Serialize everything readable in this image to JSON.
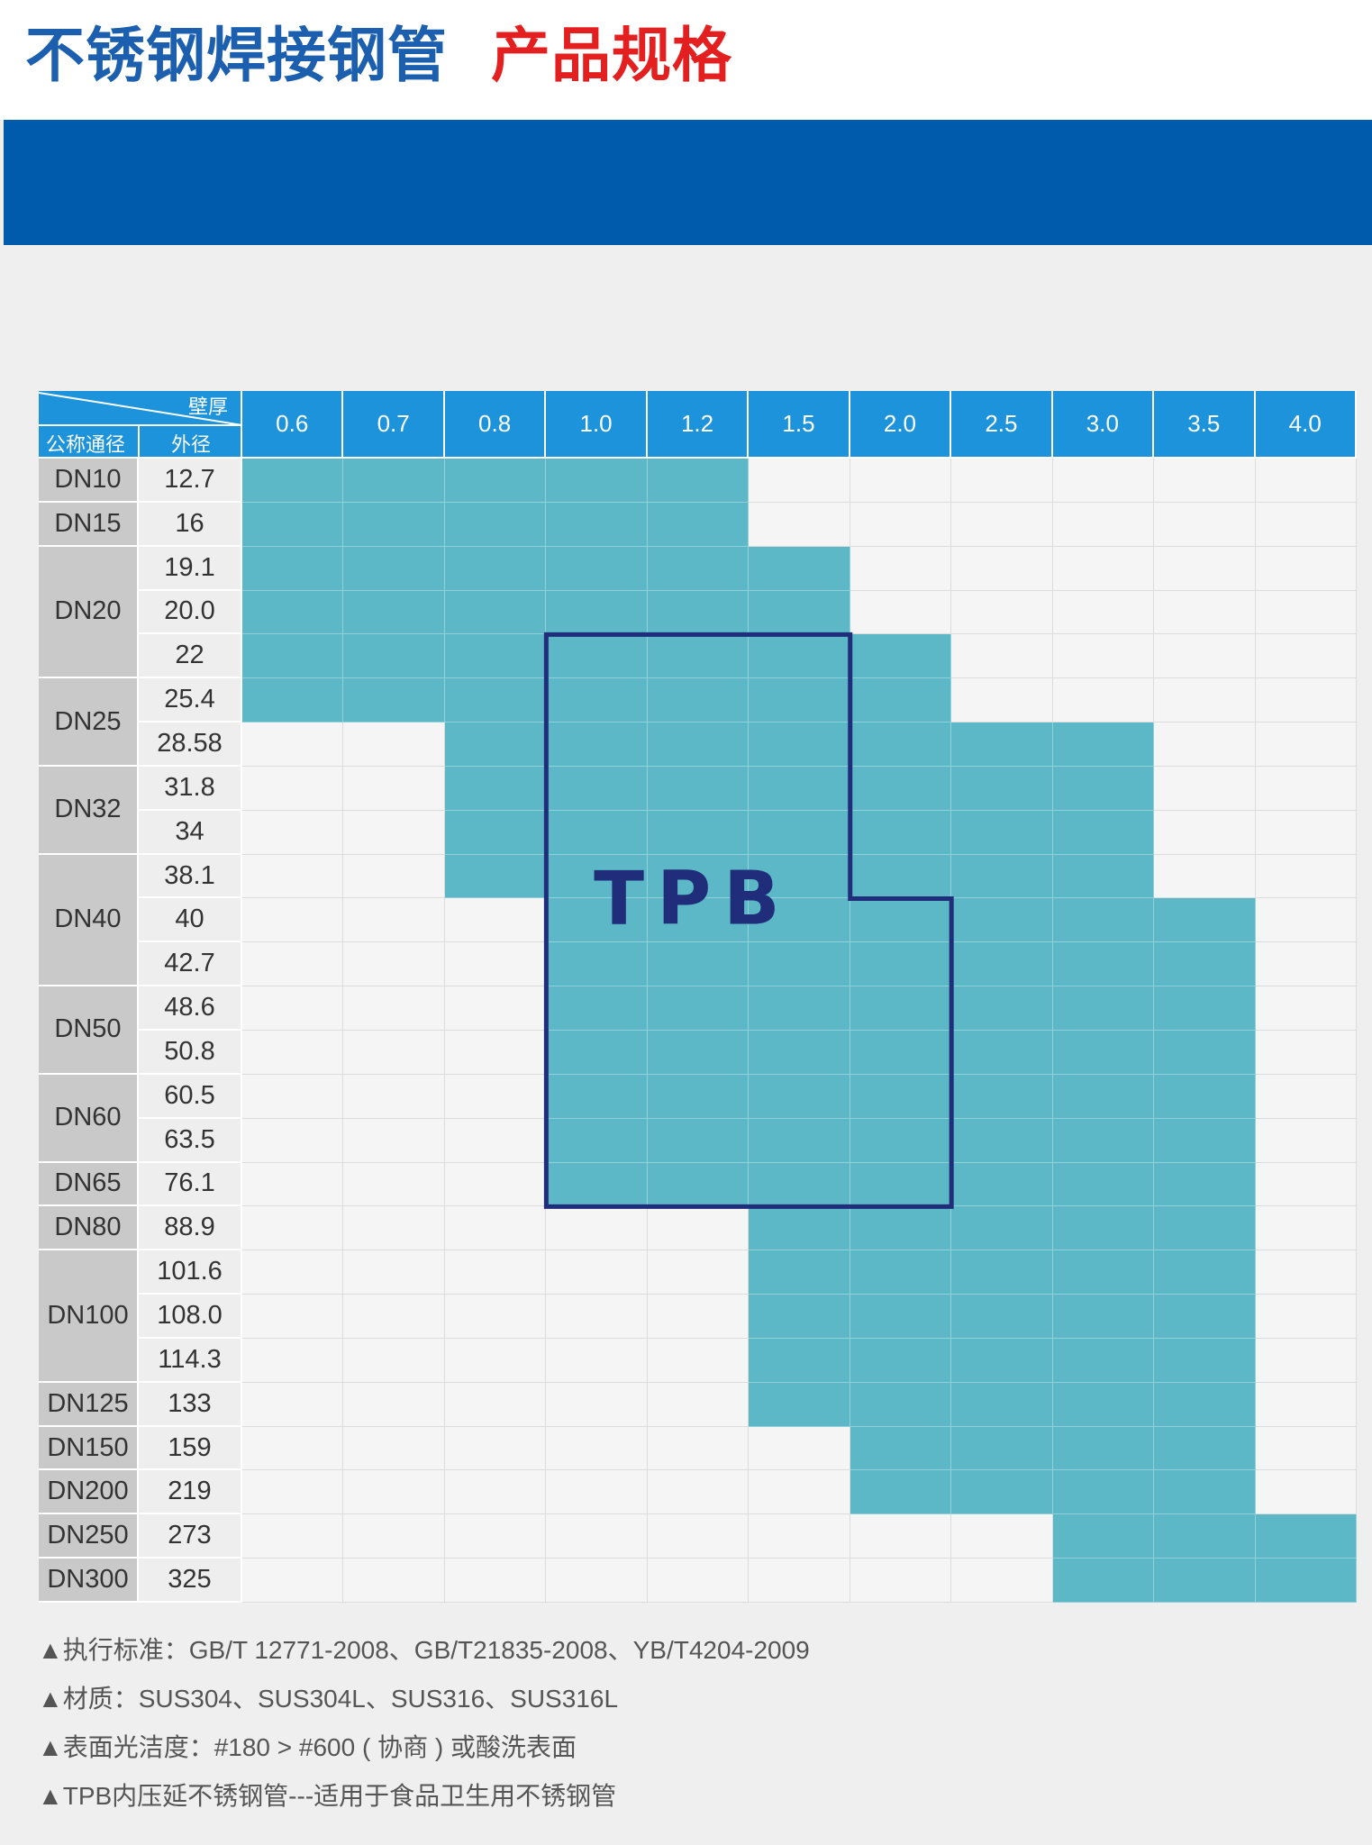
{
  "title": {
    "part1": "不锈钢焊接钢管",
    "part2": "产品规格"
  },
  "colors": {
    "title_blue": "#1b5fae",
    "title_red": "#e3201f",
    "band": "#005bac",
    "header": "#1c93da",
    "available": "#5cb8c7",
    "tpb_outline": "#1f2d7a"
  },
  "table": {
    "corner_top": "壁厚",
    "col_dn": "公称通径",
    "col_od": "外径",
    "thickness": [
      "0.6",
      "0.7",
      "0.8",
      "1.0",
      "1.2",
      "1.5",
      "2.0",
      "2.5",
      "3.0",
      "3.5",
      "4.0"
    ],
    "od": [
      "12.7",
      "16",
      "19.1",
      "20.0",
      "22",
      "25.4",
      "28.58",
      "31.8",
      "34",
      "38.1",
      "40",
      "42.7",
      "48.6",
      "50.8",
      "60.5",
      "63.5",
      "76.1",
      "88.9",
      "101.6",
      "108.0",
      "114.3",
      "133",
      "159",
      "219",
      "273",
      "325"
    ],
    "dn_groups": [
      {
        "label": "DN10",
        "rows": [
          0,
          0
        ]
      },
      {
        "label": "DN15",
        "rows": [
          1,
          1
        ]
      },
      {
        "label": "DN20",
        "rows": [
          2,
          4
        ]
      },
      {
        "label": "DN25",
        "rows": [
          5,
          6
        ]
      },
      {
        "label": "DN32",
        "rows": [
          7,
          8
        ]
      },
      {
        "label": "DN40",
        "rows": [
          9,
          11
        ]
      },
      {
        "label": "DN50",
        "rows": [
          12,
          13
        ]
      },
      {
        "label": "DN60",
        "rows": [
          14,
          15
        ]
      },
      {
        "label": "DN65",
        "rows": [
          16,
          16
        ]
      },
      {
        "label": "DN80",
        "rows": [
          17,
          17
        ]
      },
      {
        "label": "DN100",
        "rows": [
          18,
          20
        ]
      },
      {
        "label": "DN125",
        "rows": [
          21,
          21
        ]
      },
      {
        "label": "DN150",
        "rows": [
          22,
          22
        ]
      },
      {
        "label": "DN200",
        "rows": [
          23,
          23
        ]
      },
      {
        "label": "DN250",
        "rows": [
          24,
          24
        ]
      },
      {
        "label": "DN300",
        "rows": [
          25,
          25
        ]
      }
    ],
    "available_row_ranges_by_thickness": [
      [
        0,
        5
      ],
      [
        0,
        5
      ],
      [
        0,
        9
      ],
      [
        0,
        16
      ],
      [
        0,
        16
      ],
      [
        2,
        21
      ],
      [
        4,
        23
      ],
      [
        6,
        23
      ],
      [
        6,
        25
      ],
      [
        10,
        25
      ],
      [
        24,
        25
      ]
    ],
    "tpb_label": "TPB",
    "tpb_region": {
      "thickness": [
        "1.0",
        "1.2",
        "1.5",
        "2.0"
      ],
      "od_from": "22",
      "od_to": "76.1",
      "note": "2.0 from 40 to 76.1"
    }
  },
  "notes": [
    "▲执行标准：GB/T 12771-2008、GB/T21835-2008、YB/T4204-2009",
    "▲材质：SUS304、SUS304L、SUS316、SUS316L",
    "▲表面光洁度：#180 > #600 ( 协商 ) 或酸洗表面",
    "▲TPB内压延不锈钢管---适用于食品卫生用不锈钢管"
  ]
}
